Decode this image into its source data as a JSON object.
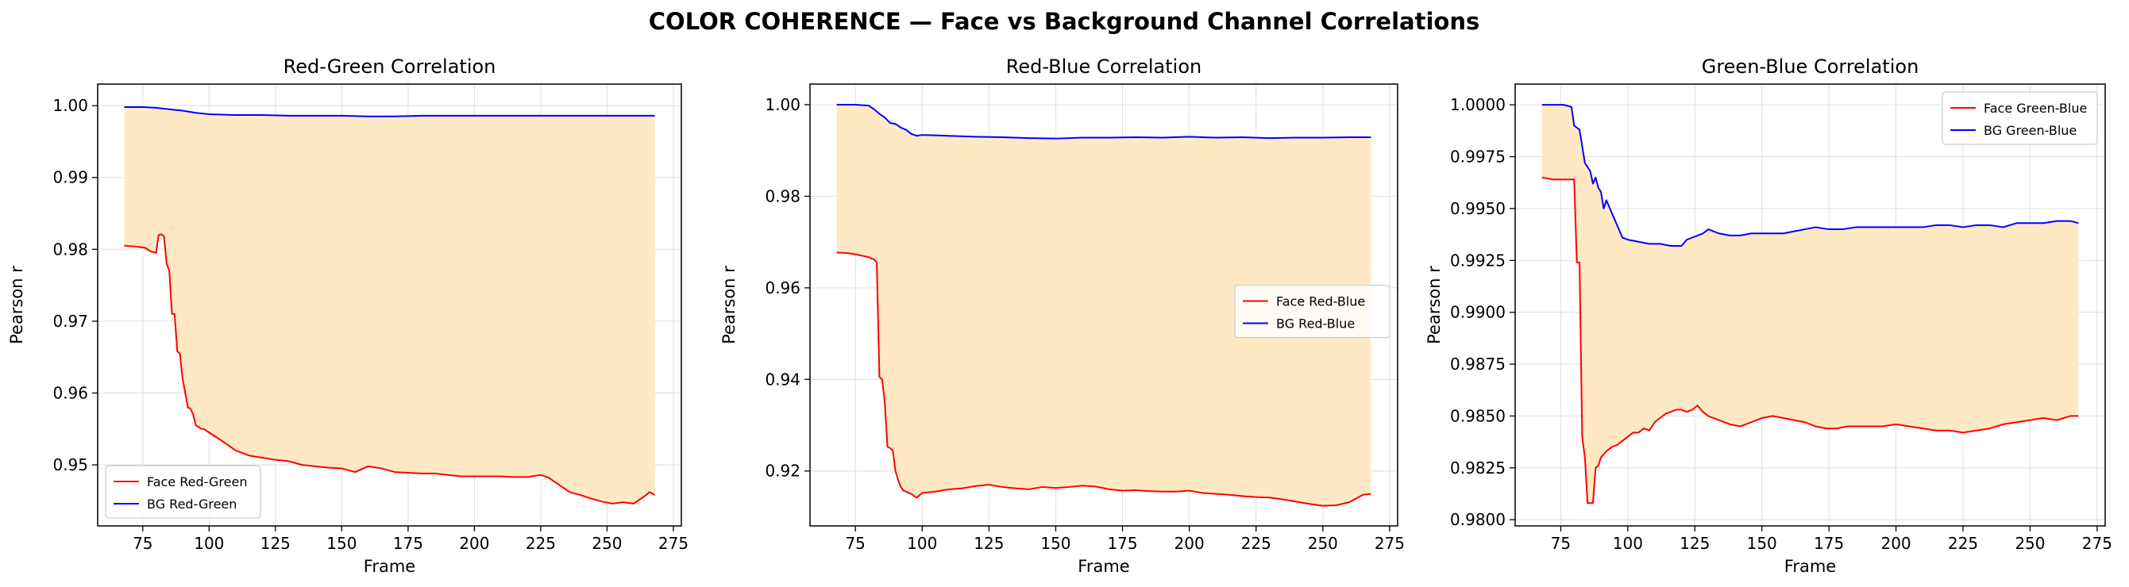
{
  "figure": {
    "suptitle": "COLOR COHERENCE — Face vs Background Channel Correlations"
  },
  "colors": {
    "face": "#ff0000",
    "bg": "#0000ff",
    "fill": "#ffe9c4",
    "grid": "#e0e0e0",
    "axis": "#000000"
  },
  "chart_data": [
    {
      "type": "line",
      "title": "Red-Green Correlation",
      "xlabel": "Frame",
      "ylabel": "Pearson r",
      "xlim": [
        58,
        278
      ],
      "ylim": [
        0.9415,
        1.003
      ],
      "xticks": [
        75,
        100,
        125,
        150,
        175,
        200,
        225,
        250,
        275
      ],
      "yticks": [
        0.95,
        0.96,
        0.97,
        0.98,
        0.99,
        1.0
      ],
      "ytick_labels": [
        "0.95",
        "0.96",
        "0.97",
        "0.98",
        "0.99",
        "1.00"
      ],
      "grid": true,
      "legend_position": "lower-left",
      "fill_between": true,
      "series": [
        {
          "name": "Face Red-Green",
          "color": "#ff0000",
          "x": [
            68,
            72,
            76,
            78,
            80,
            81,
            82,
            83,
            84,
            85,
            86,
            87,
            88,
            89,
            90,
            91,
            92,
            93,
            94,
            95,
            96,
            97,
            98,
            100,
            105,
            110,
            115,
            120,
            125,
            130,
            135,
            140,
            145,
            150,
            155,
            160,
            165,
            170,
            175,
            180,
            185,
            190,
            195,
            200,
            205,
            210,
            215,
            220,
            225,
            228,
            232,
            236,
            240,
            244,
            248,
            252,
            256,
            260,
            264,
            266,
            268
          ],
          "y": [
            0.9805,
            0.9804,
            0.9802,
            0.9797,
            0.9795,
            0.982,
            0.9821,
            0.9818,
            0.978,
            0.977,
            0.971,
            0.971,
            0.9658,
            0.9655,
            0.962,
            0.96,
            0.958,
            0.9578,
            0.957,
            0.9555,
            0.9553,
            0.955,
            0.955,
            0.9545,
            0.9533,
            0.952,
            0.9513,
            0.951,
            0.9507,
            0.9505,
            0.95,
            0.9498,
            0.9496,
            0.9495,
            0.949,
            0.9498,
            0.9495,
            0.949,
            0.9489,
            0.9488,
            0.9488,
            0.9486,
            0.9484,
            0.9484,
            0.9484,
            0.9484,
            0.9483,
            0.9483,
            0.9486,
            0.9482,
            0.9472,
            0.9462,
            0.9458,
            0.9453,
            0.9449,
            0.9446,
            0.9448,
            0.9446,
            0.9456,
            0.9462,
            0.9458
          ]
        },
        {
          "name": "BG Red-Green",
          "color": "#0000ff",
          "x": [
            68,
            75,
            80,
            85,
            90,
            95,
            100,
            110,
            120,
            130,
            140,
            150,
            160,
            170,
            180,
            190,
            200,
            210,
            220,
            230,
            240,
            250,
            260,
            268
          ],
          "y": [
            0.9998,
            0.9998,
            0.9997,
            0.9995,
            0.9993,
            0.999,
            0.9988,
            0.9987,
            0.9987,
            0.9986,
            0.9986,
            0.9986,
            0.9985,
            0.9985,
            0.9986,
            0.9986,
            0.9986,
            0.9986,
            0.9986,
            0.9986,
            0.9986,
            0.9986,
            0.9986,
            0.9986
          ]
        }
      ]
    },
    {
      "type": "line",
      "title": "Red-Blue Correlation",
      "xlabel": "Frame",
      "ylabel": "Pearson r",
      "xlim": [
        58,
        278
      ],
      "ylim": [
        0.908,
        1.0045
      ],
      "xticks": [
        75,
        100,
        125,
        150,
        175,
        200,
        225,
        250,
        275
      ],
      "yticks": [
        0.92,
        0.94,
        0.96,
        0.98,
        1.0
      ],
      "ytick_labels": [
        "0.92",
        "0.94",
        "0.96",
        "0.98",
        "1.00"
      ],
      "grid": true,
      "legend_position": "center-right",
      "fill_between": true,
      "series": [
        {
          "name": "Face Red-Blue",
          "color": "#ff0000",
          "x": [
            68,
            72,
            76,
            80,
            82,
            83,
            84,
            85,
            86,
            87,
            88,
            89,
            90,
            91,
            92,
            93,
            94,
            95,
            96,
            97,
            98,
            100,
            105,
            110,
            115,
            120,
            125,
            130,
            135,
            140,
            145,
            150,
            155,
            160,
            165,
            170,
            175,
            180,
            185,
            190,
            195,
            200,
            205,
            210,
            215,
            220,
            225,
            230,
            235,
            240,
            245,
            250,
            255,
            260,
            265,
            268
          ],
          "y": [
            0.9677,
            0.9676,
            0.9672,
            0.9667,
            0.9662,
            0.9655,
            0.9405,
            0.94,
            0.935,
            0.9253,
            0.925,
            0.9245,
            0.92,
            0.918,
            0.9165,
            0.9157,
            0.9155,
            0.9152,
            0.915,
            0.9145,
            0.9142,
            0.9152,
            0.9155,
            0.916,
            0.9162,
            0.9167,
            0.917,
            0.9165,
            0.9162,
            0.916,
            0.9165,
            0.9163,
            0.9165,
            0.9168,
            0.9166,
            0.916,
            0.9157,
            0.9158,
            0.9156,
            0.9155,
            0.9155,
            0.9157,
            0.9152,
            0.915,
            0.9148,
            0.9145,
            0.9143,
            0.9142,
            0.9138,
            0.9133,
            0.9128,
            0.9124,
            0.9125,
            0.9132,
            0.9148,
            0.915
          ]
        },
        {
          "name": "BG Red-Blue",
          "color": "#0000ff",
          "x": [
            68,
            75,
            80,
            82,
            84,
            86,
            88,
            90,
            92,
            94,
            96,
            98,
            100,
            105,
            110,
            120,
            130,
            140,
            150,
            160,
            170,
            180,
            190,
            200,
            210,
            220,
            230,
            240,
            250,
            260,
            268
          ],
          "y": [
            1.0,
            1.0,
            0.9998,
            0.999,
            0.998,
            0.9972,
            0.996,
            0.9958,
            0.995,
            0.9945,
            0.9936,
            0.9932,
            0.9934,
            0.9933,
            0.9932,
            0.993,
            0.9929,
            0.9927,
            0.9926,
            0.9928,
            0.9928,
            0.9929,
            0.9928,
            0.993,
            0.9928,
            0.9929,
            0.9927,
            0.9928,
            0.9928,
            0.9929,
            0.9929
          ]
        }
      ]
    },
    {
      "type": "line",
      "title": "Green-Blue Correlation",
      "xlabel": "Frame",
      "ylabel": "Pearson r",
      "xlim": [
        58,
        278
      ],
      "ylim": [
        0.9797,
        1.001
      ],
      "xticks": [
        75,
        100,
        125,
        150,
        175,
        200,
        225,
        250,
        275
      ],
      "yticks": [
        0.98,
        0.9825,
        0.985,
        0.9875,
        0.99,
        0.9925,
        0.995,
        0.9975,
        1.0
      ],
      "ytick_labels": [
        "0.9800",
        "0.9825",
        "0.9850",
        "0.9875",
        "0.9900",
        "0.9925",
        "0.9950",
        "0.9975",
        "1.0000"
      ],
      "grid": true,
      "legend_position": "top-right",
      "fill_between": true,
      "series": [
        {
          "name": "Face Green-Blue",
          "color": "#ff0000",
          "x": [
            68,
            72,
            76,
            80,
            81,
            82,
            83,
            84,
            85,
            86,
            87,
            88,
            89,
            90,
            92,
            94,
            96,
            98,
            100,
            102,
            104,
            106,
            108,
            110,
            112,
            114,
            116,
            118,
            120,
            122,
            124,
            126,
            128,
            130,
            134,
            138,
            142,
            146,
            150,
            154,
            158,
            162,
            166,
            170,
            174,
            178,
            182,
            186,
            190,
            195,
            200,
            205,
            210,
            215,
            220,
            225,
            230,
            235,
            240,
            245,
            250,
            255,
            260,
            265,
            268
          ],
          "y": [
            0.9965,
            0.9964,
            0.9964,
            0.9964,
            0.9924,
            0.9924,
            0.984,
            0.983,
            0.9808,
            0.9808,
            0.9808,
            0.9825,
            0.9826,
            0.983,
            0.9833,
            0.9835,
            0.9836,
            0.9838,
            0.984,
            0.9842,
            0.9842,
            0.9844,
            0.9843,
            0.9847,
            0.9849,
            0.9851,
            0.9852,
            0.9853,
            0.9853,
            0.9852,
            0.9853,
            0.9855,
            0.9852,
            0.985,
            0.9848,
            0.9846,
            0.9845,
            0.9847,
            0.9849,
            0.985,
            0.9849,
            0.9848,
            0.9847,
            0.9845,
            0.9844,
            0.9844,
            0.9845,
            0.9845,
            0.9845,
            0.9845,
            0.9846,
            0.9845,
            0.9844,
            0.9843,
            0.9843,
            0.9842,
            0.9843,
            0.9844,
            0.9846,
            0.9847,
            0.9848,
            0.9849,
            0.9848,
            0.985,
            0.985
          ]
        },
        {
          "name": "BG Green-Blue",
          "color": "#0000ff",
          "x": [
            68,
            72,
            76,
            79,
            80,
            82,
            83,
            84,
            85,
            86,
            87,
            88,
            89,
            90,
            91,
            92,
            94,
            96,
            98,
            100,
            104,
            108,
            112,
            116,
            120,
            122,
            124,
            126,
            128,
            130,
            134,
            138,
            142,
            146,
            150,
            154,
            158,
            162,
            166,
            170,
            175,
            180,
            185,
            190,
            195,
            200,
            205,
            210,
            215,
            220,
            225,
            230,
            235,
            240,
            245,
            250,
            255,
            260,
            265,
            268
          ],
          "y": [
            1.0,
            1.0,
            1.0,
            0.9999,
            0.999,
            0.9988,
            0.998,
            0.9972,
            0.997,
            0.9968,
            0.9962,
            0.9965,
            0.996,
            0.9958,
            0.995,
            0.9954,
            0.9948,
            0.9942,
            0.9936,
            0.9935,
            0.9934,
            0.9933,
            0.9933,
            0.9932,
            0.9932,
            0.9935,
            0.9936,
            0.9937,
            0.9938,
            0.994,
            0.9938,
            0.9937,
            0.9937,
            0.9938,
            0.9938,
            0.9938,
            0.9938,
            0.9939,
            0.994,
            0.9941,
            0.994,
            0.994,
            0.9941,
            0.9941,
            0.9941,
            0.9941,
            0.9941,
            0.9941,
            0.9942,
            0.9942,
            0.9941,
            0.9942,
            0.9942,
            0.9941,
            0.9943,
            0.9943,
            0.9943,
            0.9944,
            0.9944,
            0.9943
          ]
        }
      ]
    }
  ]
}
